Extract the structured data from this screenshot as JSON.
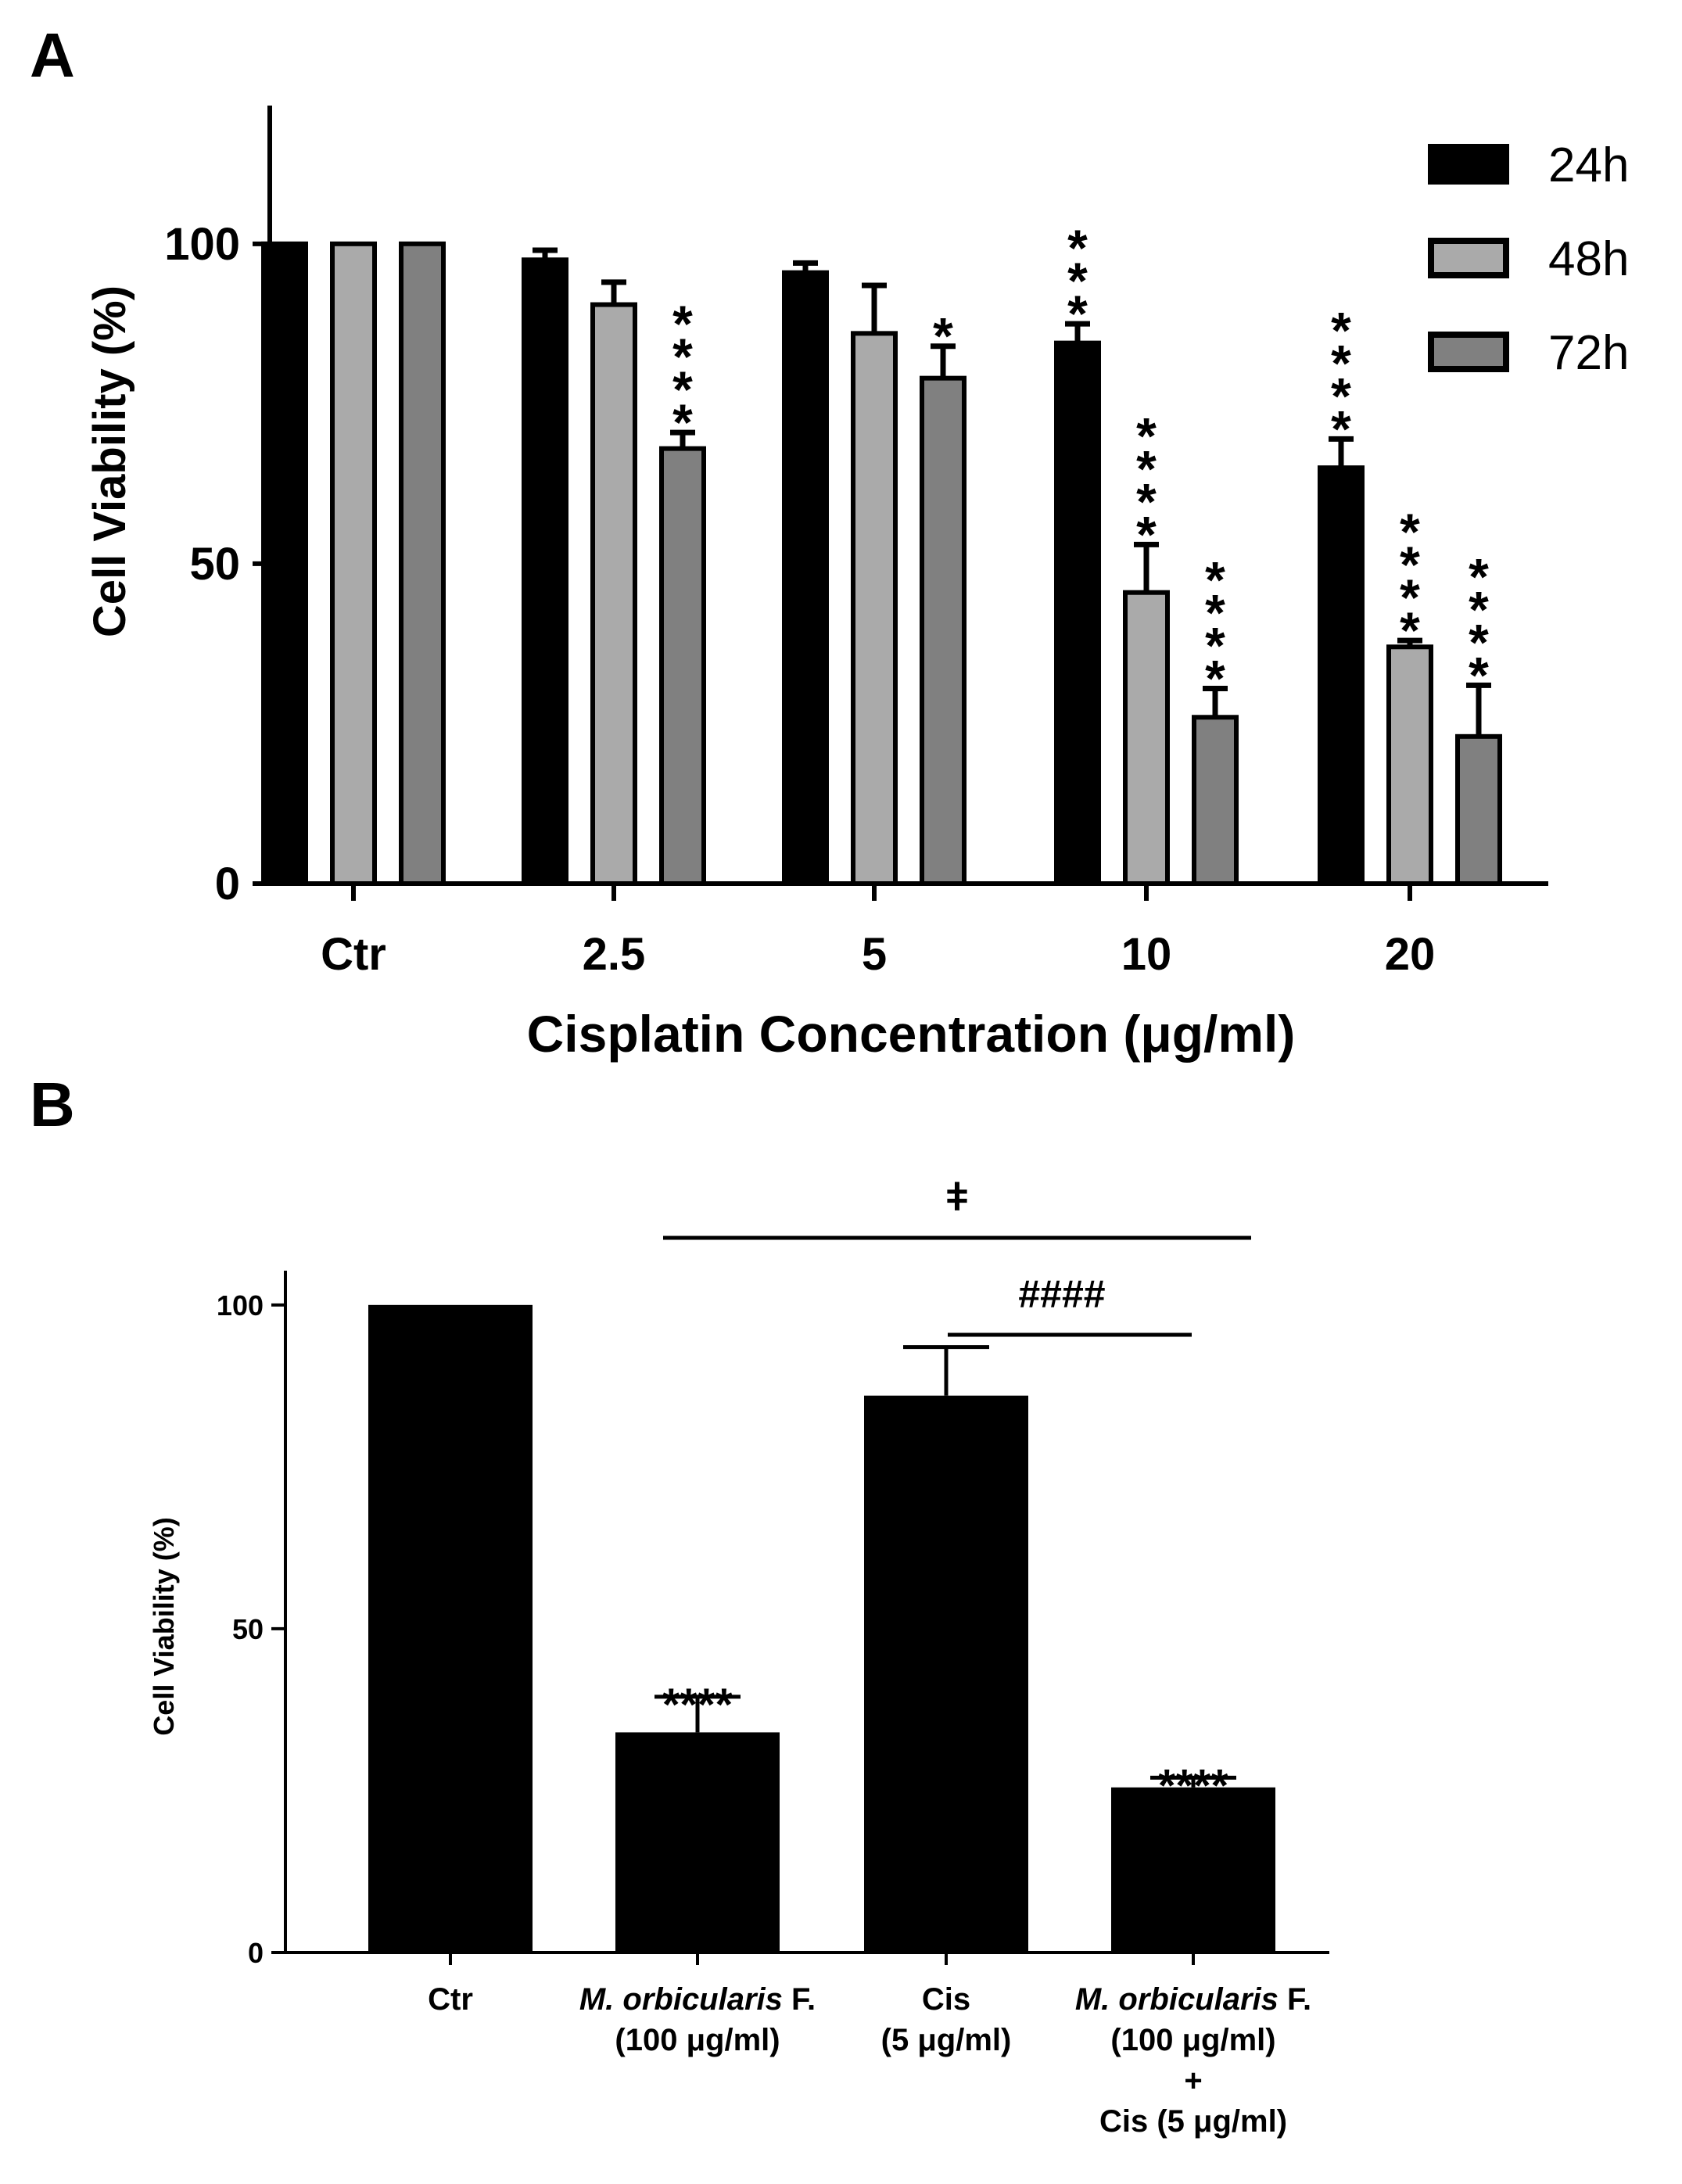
{
  "chart_data": [
    {
      "panel": "A",
      "type": "bar",
      "xlabel": "Cisplatin Concentration (μg/ml)",
      "ylabel": "Cell Viability (%)",
      "ylim": [
        0,
        110
      ],
      "yticks": [
        "0",
        "50",
        "100"
      ],
      "categories": [
        "Ctr",
        "2.5",
        "5",
        "10",
        "20"
      ],
      "series": [
        {
          "name": "24h",
          "color": "#000000",
          "values": [
            100,
            97.5,
            95.5,
            84.5,
            65
          ],
          "errors": [
            0,
            1.5,
            1.5,
            3,
            4.5
          ],
          "annotations": [
            "",
            "",
            "",
            "***",
            "****"
          ]
        },
        {
          "name": "48h",
          "color": "#aaaaaa",
          "values": [
            100,
            90.5,
            86,
            45.5,
            37
          ],
          "errors": [
            0,
            3.5,
            7.5,
            7.5,
            1
          ],
          "annotations": [
            "",
            "",
            "",
            "****",
            "****"
          ]
        },
        {
          "name": "72h",
          "color": "#808080",
          "values": [
            100,
            68,
            79,
            26,
            23
          ],
          "errors": [
            0,
            2.5,
            5,
            4.5,
            8
          ],
          "annotations": [
            "",
            "****",
            "*",
            "****",
            "****"
          ]
        }
      ],
      "legend_position": "top-right"
    },
    {
      "panel": "B",
      "type": "bar",
      "xlabel": "",
      "ylabel": "Cell Viability (%)",
      "ylim": [
        0,
        110
      ],
      "yticks": [
        "0",
        "50",
        "100"
      ],
      "categories": [
        [
          "",
          "M. orbicularis",
          " F.",
          "(100 μg/ml)"
        ],
        [
          "Ctr"
        ],
        [
          "Cis",
          "(5 μg/ml)"
        ],
        [
          "",
          "M. orbicularis",
          " F.",
          "(100 μg/ml)",
          "+",
          "Cis (5 μg/ml)"
        ]
      ],
      "category_order": [
        "Ctr",
        "M. orbicularis F. (100 μg/ml)",
        "Cis (5 μg/ml)",
        "M. orbicularis F. (100 μg/ml) + Cis (5 μg/ml)"
      ],
      "series": [
        {
          "name": "",
          "color": "#000000",
          "values": [
            100,
            34,
            86,
            25.5
          ],
          "errors": [
            0,
            5.5,
            7.5,
            1.5
          ],
          "annotations": [
            "",
            "****",
            "",
            "****"
          ]
        }
      ],
      "comparisons": [
        {
          "from": 1,
          "to": 3,
          "label": "ǂ"
        },
        {
          "from": 2,
          "to": 3,
          "label": "####"
        }
      ]
    }
  ],
  "panels": {
    "a_label": "A",
    "b_label": "B"
  }
}
